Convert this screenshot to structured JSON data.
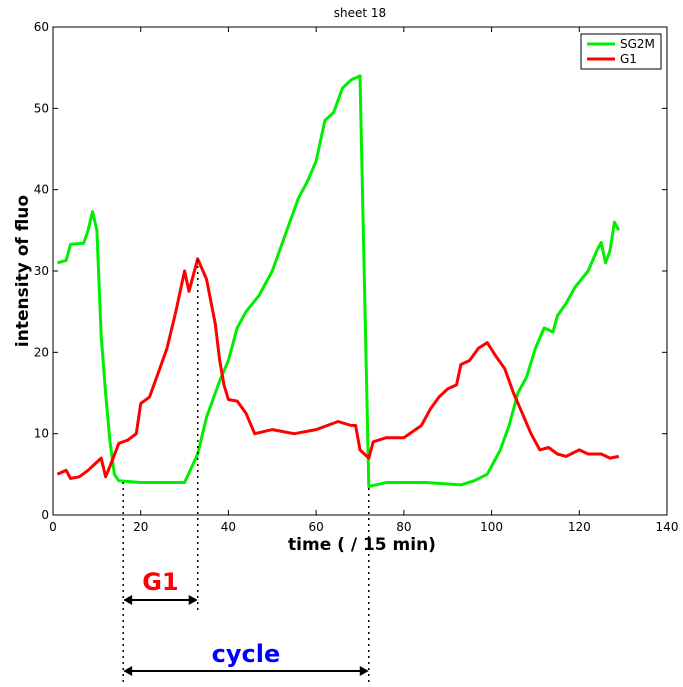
{
  "chart_data": {
    "type": "line",
    "title": "sheet 18",
    "xlabel": "time ( / 15 min)",
    "ylabel": "intensity of fluo",
    "xlim": [
      0,
      140
    ],
    "ylim": [
      0,
      60
    ],
    "x_ticks": [
      0,
      20,
      40,
      60,
      80,
      100,
      120,
      140
    ],
    "y_ticks": [
      0,
      10,
      20,
      30,
      40,
      50,
      60
    ],
    "grid": false,
    "legend_position": "top-right",
    "series": [
      {
        "name": "SG2M",
        "color": "#00ee00",
        "points": [
          [
            1,
            31
          ],
          [
            3,
            31.3
          ],
          [
            4,
            33.3
          ],
          [
            7,
            33.4
          ],
          [
            8,
            35
          ],
          [
            9,
            37.3
          ],
          [
            10,
            35
          ],
          [
            11,
            22
          ],
          [
            12,
            15
          ],
          [
            13,
            9
          ],
          [
            14,
            5
          ],
          [
            15,
            4.2
          ],
          [
            20,
            4
          ],
          [
            30,
            4
          ],
          [
            33,
            7.5
          ],
          [
            35,
            12
          ],
          [
            38,
            16.5
          ],
          [
            40,
            19
          ],
          [
            42,
            23
          ],
          [
            44,
            25
          ],
          [
            47,
            27
          ],
          [
            50,
            30
          ],
          [
            53,
            34.5
          ],
          [
            56,
            39
          ],
          [
            58,
            41
          ],
          [
            60,
            43.5
          ],
          [
            62,
            48.5
          ],
          [
            64,
            49.5
          ],
          [
            66,
            52.5
          ],
          [
            68,
            53.5
          ],
          [
            70,
            54
          ],
          [
            72,
            3.5
          ],
          [
            76,
            4
          ],
          [
            85,
            4
          ],
          [
            93,
            3.7
          ],
          [
            96,
            4.2
          ],
          [
            99,
            5
          ],
          [
            102,
            8
          ],
          [
            104,
            11
          ],
          [
            106,
            15
          ],
          [
            108,
            17
          ],
          [
            110,
            20.5
          ],
          [
            112,
            23
          ],
          [
            114,
            22.5
          ],
          [
            115,
            24.5
          ],
          [
            117,
            26
          ],
          [
            119,
            28
          ],
          [
            122,
            30
          ],
          [
            124,
            32.5
          ],
          [
            125,
            33.5
          ],
          [
            126,
            31
          ],
          [
            127,
            32.5
          ],
          [
            128,
            36
          ],
          [
            129,
            35
          ]
        ]
      },
      {
        "name": "G1",
        "color": "#ff0000",
        "points": [
          [
            1,
            5
          ],
          [
            3,
            5.5
          ],
          [
            4,
            4.5
          ],
          [
            6,
            4.7
          ],
          [
            8,
            5.5
          ],
          [
            10,
            6.5
          ],
          [
            11,
            7
          ],
          [
            12,
            4.7
          ],
          [
            13,
            6
          ],
          [
            15,
            8.8
          ],
          [
            17,
            9.2
          ],
          [
            19,
            10
          ],
          [
            20,
            13.7
          ],
          [
            22,
            14.5
          ],
          [
            24,
            17.5
          ],
          [
            26,
            20.5
          ],
          [
            28,
            25
          ],
          [
            30,
            30
          ],
          [
            31,
            27.5
          ],
          [
            33,
            31.5
          ],
          [
            35,
            29
          ],
          [
            37,
            23.5
          ],
          [
            38,
            19
          ],
          [
            39,
            16
          ],
          [
            40,
            14.2
          ],
          [
            42,
            14
          ],
          [
            44,
            12.5
          ],
          [
            46,
            10
          ],
          [
            50,
            10.5
          ],
          [
            55,
            10
          ],
          [
            60,
            10.5
          ],
          [
            65,
            11.5
          ],
          [
            68,
            11
          ],
          [
            69,
            11
          ],
          [
            70,
            8
          ],
          [
            72,
            7
          ],
          [
            73,
            9
          ],
          [
            76,
            9.5
          ],
          [
            80,
            9.5
          ],
          [
            84,
            11
          ],
          [
            86,
            13
          ],
          [
            88,
            14.5
          ],
          [
            90,
            15.5
          ],
          [
            92,
            16
          ],
          [
            93,
            18.5
          ],
          [
            95,
            19
          ],
          [
            97,
            20.5
          ],
          [
            99,
            21.2
          ],
          [
            101,
            19.5
          ],
          [
            103,
            18
          ],
          [
            105,
            15
          ],
          [
            107,
            12.5
          ],
          [
            109,
            10
          ],
          [
            111,
            8
          ],
          [
            113,
            8.3
          ],
          [
            115,
            7.5
          ],
          [
            117,
            7.2
          ],
          [
            120,
            8
          ],
          [
            122,
            7.5
          ],
          [
            125,
            7.5
          ],
          [
            127,
            7
          ],
          [
            129,
            7.2
          ]
        ]
      }
    ]
  },
  "annotations": {
    "g1_label": "G1",
    "g1_start": 16,
    "g1_end": 33,
    "cycle_label": "cycle",
    "cycle_start": 16,
    "cycle_end": 72
  }
}
